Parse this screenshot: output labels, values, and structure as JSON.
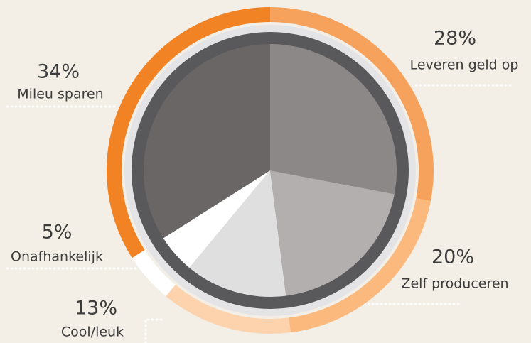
{
  "chart_data": {
    "type": "pie",
    "categories": [
      "Leveren geld op",
      "Zelf produceren",
      "Cool/leuk",
      "Onafhankelijk",
      "Mileu sparen"
    ],
    "values": [
      28,
      20,
      13,
      5,
      34
    ],
    "value_labels": [
      "28%",
      "20%",
      "13%",
      "5%",
      "34%"
    ],
    "colors": [
      "#8c8887",
      "#b3afae",
      "#e0dfdf",
      "#ffffff",
      "#6a6665"
    ],
    "ring_colors": [
      "#f6a25d",
      "#fbb97d",
      "#fdd3ad",
      "#ffffff",
      "#f28324"
    ]
  }
}
